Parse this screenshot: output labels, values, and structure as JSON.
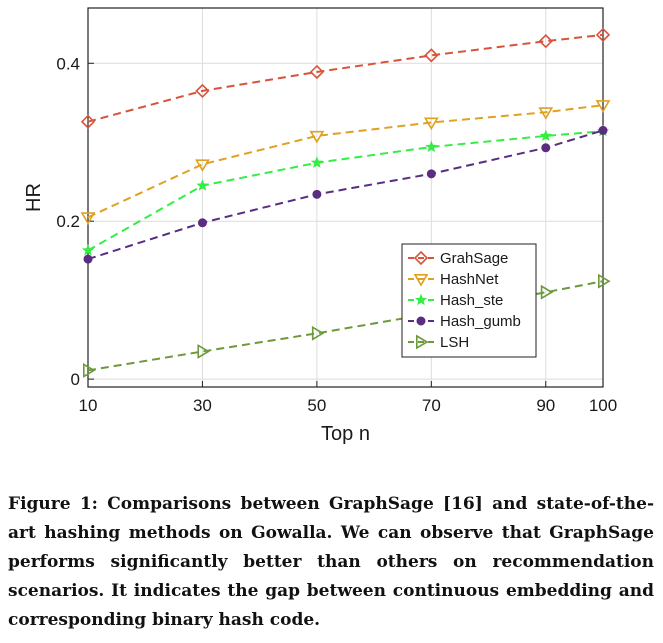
{
  "caption": "Figure 1: Comparisons between GraphSage [16] and state-of-the-art hashing methods on Gowalla. We can observe that GraphSage performs significantly better than others on recommendation scenarios. It indicates the gap between continuous embedding and corresponding binary hash code.",
  "chart_data": {
    "type": "line",
    "title": "",
    "xlabel": "Top n",
    "ylabel": "HR",
    "x": [
      10,
      30,
      50,
      70,
      90,
      100
    ],
    "x_tick_labels": [
      "10",
      "30",
      "50",
      "70",
      "90",
      "100"
    ],
    "y_ticks": [
      0,
      0.2,
      0.4
    ],
    "y_tick_labels": [
      "0",
      "0.2",
      "0.4"
    ],
    "ylim": [
      -0.01,
      0.47
    ],
    "grid": true,
    "legend_position": "bottom-right",
    "series": [
      {
        "name": "GrahSage",
        "color": "#d9533a",
        "marker": "diamond",
        "values": [
          0.326,
          0.365,
          0.389,
          0.41,
          0.428,
          0.436
        ]
      },
      {
        "name": "HashNet",
        "color": "#e0a020",
        "marker": "triangle-down",
        "values": [
          0.205,
          0.272,
          0.308,
          0.325,
          0.338,
          0.347
        ]
      },
      {
        "name": "Hash_ste",
        "color": "#33ee44",
        "marker": "star",
        "values": [
          0.163,
          0.245,
          0.274,
          0.294,
          0.308,
          0.314
        ]
      },
      {
        "name": "Hash_gumb",
        "color": "#5a2d80",
        "marker": "circle",
        "values": [
          0.152,
          0.198,
          0.234,
          0.26,
          0.293,
          0.315
        ]
      },
      {
        "name": "LSH",
        "color": "#6c9a3a",
        "marker": "triangle-right",
        "values": [
          0.011,
          0.035,
          0.058,
          0.083,
          0.11,
          0.124
        ]
      }
    ]
  }
}
